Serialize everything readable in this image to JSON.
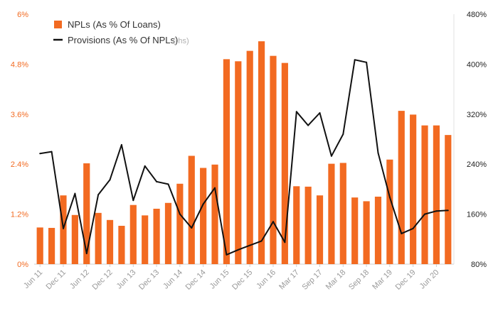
{
  "chart_data": {
    "type": "bar",
    "title": "",
    "xlabel": "",
    "ylabel": "",
    "y2label": "",
    "ylim": [
      0,
      6
    ],
    "y2lim": [
      80,
      480
    ],
    "yticks": [
      "0%",
      "1.2%",
      "2.4%",
      "3.6%",
      "4.8%",
      "6%"
    ],
    "y2ticks": [
      "80%",
      "160%",
      "240%",
      "320%",
      "400%",
      "480%"
    ],
    "xtick_labels": [
      "Jun 11",
      "Dec 11",
      "Jun 12",
      "Dec 12",
      "Jun 13",
      "Dec 13",
      "Jun 14",
      "Dec 14",
      "Jun 15",
      "Dec 15",
      "Jun 16",
      "Mar 17",
      "Sep 17",
      "Mar 18",
      "Sep 18",
      "Mar 19",
      "Dec 19",
      "Jun 20"
    ],
    "legend": {
      "position": "top-left",
      "entries": [
        {
          "label": "NPLs (As % Of Loans)",
          "suffix": ""
        },
        {
          "label": "Provisions (As % Of NPLs)",
          "suffix": "(rhs)"
        }
      ]
    },
    "colors": {
      "bars": "#f26a21",
      "line": "#111111",
      "left_axis_text": "#f26a21",
      "right_axis_text": "#222222",
      "tick_text": "#9a9a9a"
    },
    "series": [
      {
        "name": "NPLs (As % Of Loans)",
        "type": "bar",
        "axis": "left",
        "values": [
          0.88,
          0.87,
          1.65,
          1.18,
          2.42,
          1.23,
          1.06,
          0.92,
          1.42,
          1.17,
          1.33,
          1.47,
          1.93,
          2.6,
          2.31,
          2.39,
          4.92,
          4.87,
          5.12,
          5.35,
          5.0,
          4.83,
          1.87,
          1.86,
          1.65,
          2.41,
          2.43,
          1.6,
          1.51,
          1.62,
          2.51,
          3.68,
          3.59,
          3.33,
          3.33,
          3.1
        ]
      },
      {
        "name": "Provisions (As % Of NPLs)",
        "type": "line",
        "axis": "right",
        "values": [
          257,
          260,
          137,
          193,
          97,
          191,
          215,
          271,
          182,
          237,
          212,
          208,
          160,
          138,
          176,
          202,
          95,
          103,
          110,
          117,
          148,
          115,
          324,
          302,
          322,
          253,
          288,
          407,
          403,
          258,
          187,
          129,
          137,
          160,
          165,
          166
        ]
      }
    ]
  }
}
